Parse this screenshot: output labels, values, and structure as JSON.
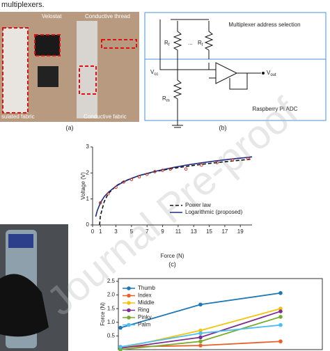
{
  "text": {
    "fragment": "multiplexers.",
    "watermark": "Journal Pre-proof"
  },
  "panel_a": {
    "labels": [
      "Velostat",
      "Conductive thread",
      "Conductive fabric",
      "sulated fabric"
    ],
    "caption": "(a)"
  },
  "panel_b": {
    "address": "Multiplexer address selection",
    "adc": "Raspberry Pi ADC",
    "dots": "...",
    "caption": "(b)",
    "r1": {
      "main": "R",
      "sub": "f"
    },
    "r2": {
      "main": "R",
      "sub": "f"
    },
    "rm": {
      "main": "R",
      "sub": "m"
    },
    "vcc": {
      "main": "V",
      "sub": "cc"
    },
    "vout": {
      "main": "V",
      "sub": "out"
    }
  },
  "chart_data": [
    {
      "type": "line",
      "title": "(c)",
      "x_label": "Force (N)",
      "y_label": "Voltage (V)",
      "xlim": [
        0,
        20.5
      ],
      "xticks": [
        0,
        1,
        3,
        5,
        7,
        9,
        11,
        13,
        15,
        17,
        19
      ],
      "ylim": [
        0,
        3
      ],
      "yticks": [
        0,
        1,
        2,
        3
      ],
      "legend": "lower right",
      "series": [
        {
          "name": "Power law",
          "color": "#111111",
          "dash": true,
          "x": [
            0.9,
            1,
            1.5,
            2,
            3,
            4,
            6,
            8,
            10,
            12,
            14,
            16,
            18,
            20,
            20.5
          ],
          "values": [
            0,
            0.35,
            0.9,
            1.2,
            1.5,
            1.68,
            1.9,
            2.05,
            2.16,
            2.25,
            2.33,
            2.4,
            2.46,
            2.52,
            2.53
          ]
        },
        {
          "name": "Logarithmic (proposed)",
          "color": "#1f2a80",
          "dash": false,
          "x": [
            0.4,
            0.6,
            1,
            1.5,
            2,
            3,
            4,
            5,
            6,
            8,
            10,
            12,
            14,
            16,
            18,
            20,
            20.5
          ],
          "values": [
            0.32,
            0.55,
            0.85,
            1.09,
            1.25,
            1.49,
            1.66,
            1.79,
            1.9,
            2.06,
            2.19,
            2.3,
            2.39,
            2.47,
            2.54,
            2.6,
            2.62
          ]
        }
      ],
      "points": {
        "color": "#c0392b",
        "x": [
          1,
          2,
          3,
          4,
          5,
          6,
          7,
          8,
          9,
          10,
          12,
          14,
          16,
          18,
          20
        ],
        "values": [
          0.85,
          1.2,
          1.45,
          1.65,
          1.75,
          1.85,
          1.95,
          2.05,
          2.1,
          2.15,
          2.15,
          2.3,
          2.4,
          2.5,
          2.55
        ]
      }
    },
    {
      "type": "line",
      "y_label": "Force (N)",
      "categories": [
        null,
        null,
        null
      ],
      "ylim": [
        0,
        2.6
      ],
      "yticks": [
        0.5,
        {
          "value": 1,
          "label": "1.0"
        },
        1.5,
        {
          "value": 2,
          "label": "2.0"
        },
        2.5
      ],
      "legend": "upper left",
      "series": [
        {
          "name": "Thumb",
          "color": "#1f77b4",
          "values": [
            0.8,
            1.65,
            2.07
          ]
        },
        {
          "name": "Index",
          "color": "#e5622a",
          "values": [
            0.1,
            0.15,
            0.3
          ]
        },
        {
          "name": "Middle",
          "color": "#f2c40f",
          "values": [
            0.05,
            0.7,
            1.5
          ]
        },
        {
          "name": "Ring",
          "color": "#7e2f8e",
          "values": [
            0.05,
            0.45,
            1.4
          ]
        },
        {
          "name": "Pinky",
          "color": "#77ac30",
          "values": [
            0,
            0.3,
            1.2
          ]
        },
        {
          "name": "Palm",
          "color": "#4dbeee",
          "values": [
            0.1,
            0.6,
            0.9
          ]
        }
      ]
    }
  ]
}
